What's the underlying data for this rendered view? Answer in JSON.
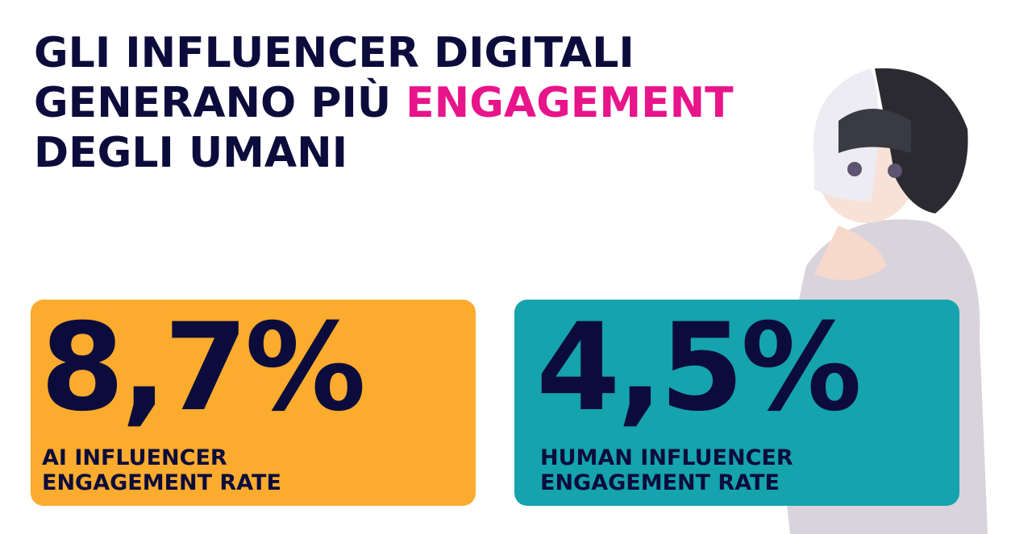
{
  "header": {
    "title_line1": "GLI INFLUENCER DIGITALI",
    "title_line2_start": "GENERANO PIÙ",
    "title_highlight": "ENGAGEMENT",
    "title_line3": "DEGLI UMANI"
  },
  "cards": [
    {
      "value": "8,7%",
      "label_line1": "AI INFLUENCER",
      "label_line2": "ENGAGEMENT RATE"
    },
    {
      "value": "4,5%",
      "label_line1": "HUMAN INFLUENCER",
      "label_line2": "ENGAGEMENT RATE"
    }
  ]
}
